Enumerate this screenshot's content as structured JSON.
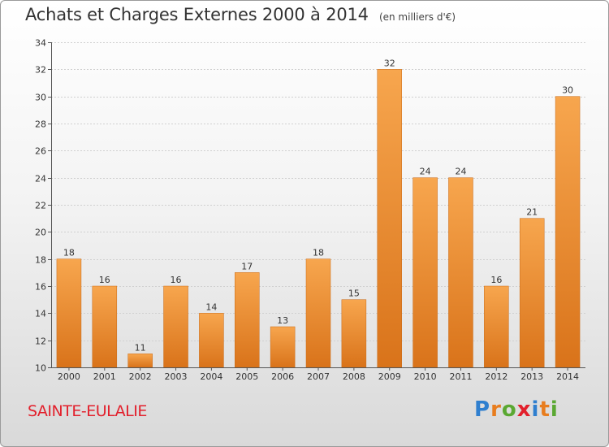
{
  "header": {
    "title": "Achats et Charges Externes 2000 à 2014",
    "subtitle": "(en milliers d'€)"
  },
  "footer": {
    "location": "SAINTE-EULALIE",
    "logo": {
      "text": "Proxiti",
      "letters": [
        {
          "ch": "P",
          "color": "#2f7fcf"
        },
        {
          "ch": "r",
          "color": "#e87d1e"
        },
        {
          "ch": "o",
          "color": "#5aa832"
        },
        {
          "ch": "x",
          "color": "#e2202c"
        },
        {
          "ch": "i",
          "color": "#2f7fcf"
        },
        {
          "ch": "t",
          "color": "#e87d1e"
        },
        {
          "ch": "i",
          "color": "#5aa832"
        }
      ]
    }
  },
  "colors": {
    "bar_top": "#f7a64e",
    "bar_bottom": "#d9731a",
    "axis": "#555555",
    "grid": "#d0d0d0"
  },
  "chart_data": {
    "type": "bar",
    "categories": [
      "2000",
      "2001",
      "2002",
      "2003",
      "2004",
      "2005",
      "2006",
      "2007",
      "2008",
      "2009",
      "2010",
      "2011",
      "2012",
      "2013",
      "2014"
    ],
    "values": [
      18,
      16,
      11,
      16,
      14,
      17,
      13,
      18,
      15,
      32,
      24,
      24,
      16,
      21,
      30
    ],
    "title": "Achats et Charges Externes 2000 à 2014",
    "subtitle": "(en milliers d'€)",
    "xlabel": "",
    "ylabel": "",
    "ylim": [
      10,
      34
    ],
    "yticks": [
      10,
      12,
      14,
      16,
      18,
      20,
      22,
      24,
      26,
      28,
      30,
      32,
      34
    ],
    "grid": true,
    "data_labels": true
  }
}
